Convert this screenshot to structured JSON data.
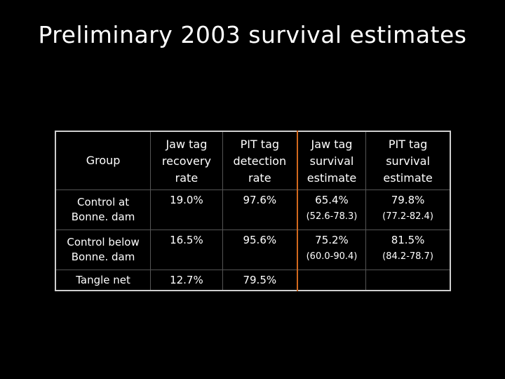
{
  "slide": {
    "title": "Preliminary 2003 survival estimates"
  },
  "table": {
    "headers": [
      "Group",
      "Jaw tag recovery rate",
      "PIT tag detection rate",
      "Jaw tag survival estimate",
      "PIT tag survival estimate"
    ],
    "rows": [
      {
        "group": "Control at Bonne. dam",
        "jaw_recovery": "19.0%",
        "pit_detection": "97.6%",
        "jaw_survival": "65.4%",
        "jaw_ci": "(52.6-78.3)",
        "pit_survival": "79.8%",
        "pit_ci": "(77.2-82.4)"
      },
      {
        "group": "Control below Bonne. dam",
        "jaw_recovery": "16.5%",
        "pit_detection": "95.6%",
        "jaw_survival": "75.2%",
        "jaw_ci": "(60.0-90.4)",
        "pit_survival": "81.5%",
        "pit_ci": "(84.2-78.7)"
      },
      {
        "group": "Tangle net",
        "jaw_recovery": "12.7%",
        "pit_detection": "79.5%",
        "jaw_survival": "",
        "jaw_ci": "",
        "pit_survival": "",
        "pit_ci": ""
      }
    ]
  },
  "colors": {
    "background": "#000000",
    "text": "#ffffff",
    "table_border": "#cfcfcf",
    "column_divider": "#d2691e"
  }
}
